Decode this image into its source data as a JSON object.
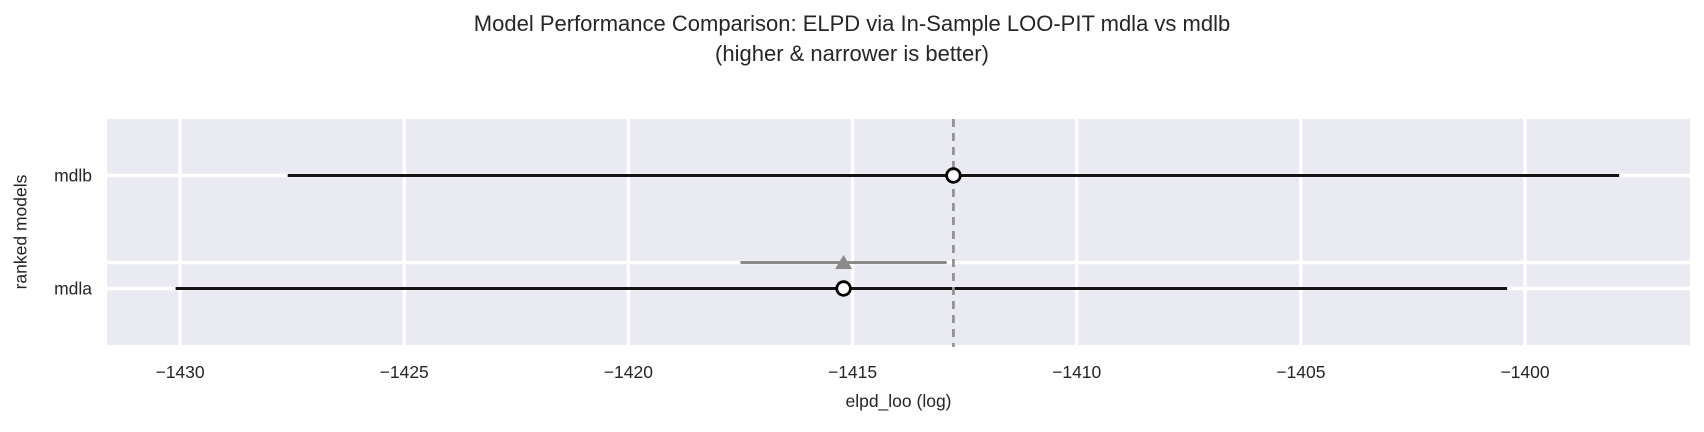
{
  "chart_data": {
    "type": "forest",
    "title": "Model Performance Comparison: ELPD via In-Sample LOO-PIT mdla vs mdlb",
    "subtitle": "(higher & narrower is better)",
    "xlabel": "elpd_loo (log)",
    "ylabel": "ranked models",
    "xlim": [
      -1431.63,
      -1396.32
    ],
    "grid": true,
    "legend": "none",
    "xticks": [
      {
        "value": -1430,
        "label": "−1430"
      },
      {
        "value": -1425,
        "label": "−1425"
      },
      {
        "value": -1420,
        "label": "−1420"
      },
      {
        "value": -1415,
        "label": "−1415"
      },
      {
        "value": -1410,
        "label": "−1410"
      },
      {
        "value": -1405,
        "label": "−1405"
      },
      {
        "value": -1400,
        "label": "−1400"
      }
    ],
    "best_model_vline_x": -1412.75,
    "models": [
      {
        "name": "mdlb",
        "elpd_loo": -1412.75,
        "ci_low": -1427.6,
        "ci_high": -1397.9
      },
      {
        "name": "mdla",
        "elpd_loo": -1415.2,
        "ci_low": -1430.1,
        "ci_high": -1400.4,
        "diff": {
          "center": -1415.2,
          "ci_low": -1417.5,
          "ci_high": -1412.9
        }
      }
    ],
    "colors": {
      "plot_bg": "#eaeaf2",
      "grid": "#ffffff",
      "model_line": "#141414",
      "marker_fill": "#ffffff",
      "marker_edge": "#000000",
      "diff_gray": "#8a8a8a",
      "vline_gray": "#949494",
      "text": "#262626"
    }
  }
}
